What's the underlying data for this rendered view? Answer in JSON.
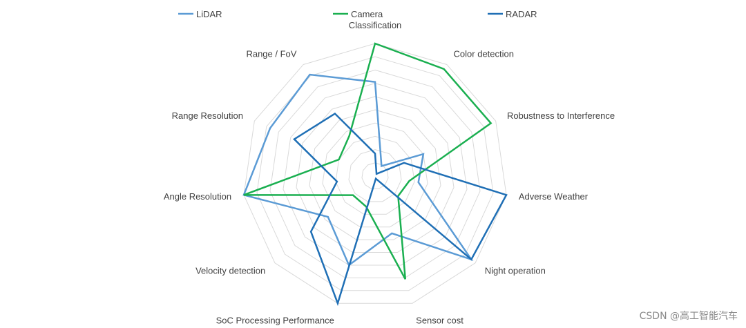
{
  "chart_data": {
    "type": "radar",
    "categories": [
      "Classification",
      "Color detection",
      "Robustness to Interference",
      "Adverse Weather",
      "Night operation",
      "Sensor cost",
      "SoC Processing Performance",
      "Velocity detection",
      "Angle Resolution",
      "Range Resolution",
      "Range / FoV"
    ],
    "rmax": 10,
    "rings": 10,
    "grid": true,
    "legend_position": "top",
    "series": [
      {
        "name": "LiDAR",
        "color": "#5b9bd5",
        "values": [
          7.1,
          0.9,
          4.0,
          3.3,
          9.6,
          4.5,
          7.0,
          4.7,
          10,
          8.7,
          9.1
        ]
      },
      {
        "name": "Camera",
        "color": "#1aaf50",
        "values": [
          10,
          9.6,
          9.6,
          2.6,
          2.3,
          8.1,
          2.4,
          2.2,
          10,
          3.0,
          3.6
        ]
      },
      {
        "name": "RADAR",
        "color": "#1f6fb5",
        "values": [
          1.7,
          0.2,
          2.4,
          10,
          9.6,
          0.2,
          10,
          6.4,
          2.9,
          6.7,
          5.6
        ]
      }
    ]
  },
  "watermark": "CSDN @高工智能汽车"
}
